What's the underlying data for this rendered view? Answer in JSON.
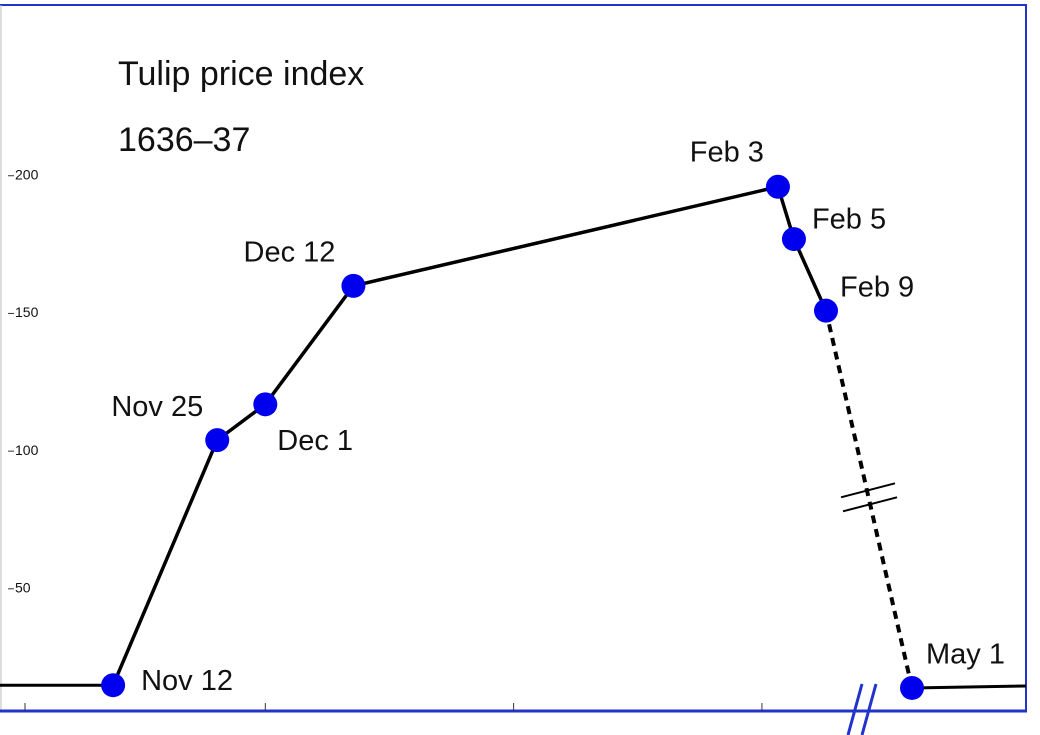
{
  "chart_data": {
    "type": "line",
    "title": "Tulip price index",
    "subtitle": "1636–37",
    "x": [
      "Nov 12",
      "Nov 25",
      "Dec 1",
      "Dec 12",
      "Feb 3",
      "Feb 5",
      "Feb 9",
      "May 1"
    ],
    "values": [
      15,
      104,
      117,
      160,
      196,
      177,
      151,
      14
    ],
    "color": "#000000",
    "marker_color": "#0000ee",
    "ylim": [
      6,
      262
    ],
    "yticks": [
      50,
      100,
      150,
      200
    ]
  }
}
